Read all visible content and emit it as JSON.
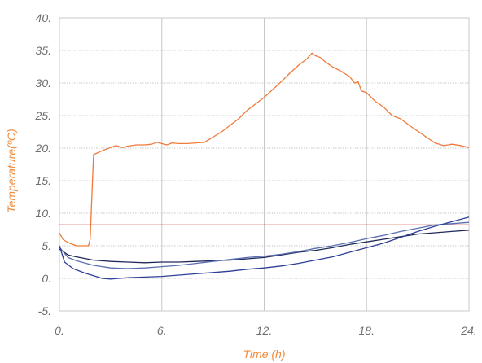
{
  "chart_data": {
    "type": "line",
    "title": "",
    "xlabel": "Time (h)",
    "ylabel": "Temperature(ºC)",
    "xlim": [
      0,
      24
    ],
    "ylim": [
      -5,
      40
    ],
    "x_ticks": [
      0,
      6,
      12,
      18,
      24
    ],
    "x_tick_labels": [
      "0.",
      "6.",
      "12.",
      "18.",
      "24."
    ],
    "y_ticks": [
      -5,
      0,
      5,
      10,
      15,
      20,
      25,
      30,
      35,
      40
    ],
    "y_tick_labels": [
      "-5.",
      "0.",
      "5.",
      "10.",
      "15.",
      "20.",
      "25.",
      "30.",
      "35.",
      "40."
    ],
    "grid": {
      "horizontal": true,
      "vertical": true
    },
    "legend": "none",
    "colors": {
      "axis_title": "#f08a3c",
      "tick_label": "#6f6f6f",
      "grid_major": "#c8c8c8",
      "grid_minor": "#b8b8b8",
      "border": "#c8c8c8"
    },
    "series": [
      {
        "color": "#f07a3a",
        "points": [
          [
            0,
            7.0
          ],
          [
            0.2,
            6.0
          ],
          [
            0.5,
            5.5
          ],
          [
            1.0,
            5.0
          ],
          [
            1.5,
            5.0
          ],
          [
            1.7,
            5.0
          ],
          [
            1.8,
            6.0
          ],
          [
            2.0,
            19.0
          ],
          [
            2.5,
            19.6
          ],
          [
            3.0,
            20.1
          ],
          [
            3.3,
            20.4
          ],
          [
            3.7,
            20.1
          ],
          [
            4.0,
            20.3
          ],
          [
            4.5,
            20.5
          ],
          [
            5.0,
            20.5
          ],
          [
            5.4,
            20.6
          ],
          [
            5.7,
            20.9
          ],
          [
            6.0,
            20.7
          ],
          [
            6.3,
            20.5
          ],
          [
            6.6,
            20.8
          ],
          [
            7.0,
            20.7
          ],
          [
            7.5,
            20.7
          ],
          [
            8.0,
            20.8
          ],
          [
            8.5,
            20.9
          ],
          [
            9.0,
            21.7
          ],
          [
            9.5,
            22.5
          ],
          [
            10.0,
            23.5
          ],
          [
            10.5,
            24.5
          ],
          [
            11.0,
            25.8
          ],
          [
            11.5,
            26.8
          ],
          [
            12.0,
            27.8
          ],
          [
            12.5,
            29.0
          ],
          [
            13.0,
            30.2
          ],
          [
            13.5,
            31.5
          ],
          [
            14.0,
            32.7
          ],
          [
            14.5,
            33.7
          ],
          [
            14.8,
            34.6
          ],
          [
            15.0,
            34.2
          ],
          [
            15.3,
            33.9
          ],
          [
            15.6,
            33.2
          ],
          [
            16.0,
            32.5
          ],
          [
            16.5,
            31.8
          ],
          [
            17.0,
            31.0
          ],
          [
            17.3,
            30.0
          ],
          [
            17.5,
            30.2
          ],
          [
            17.7,
            28.8
          ],
          [
            18.0,
            28.5
          ],
          [
            18.5,
            27.2
          ],
          [
            19.0,
            26.3
          ],
          [
            19.5,
            25.0
          ],
          [
            20.0,
            24.5
          ],
          [
            20.5,
            23.5
          ],
          [
            21.0,
            22.6
          ],
          [
            21.5,
            21.7
          ],
          [
            22.0,
            20.8
          ],
          [
            22.5,
            20.4
          ],
          [
            22.8,
            20.5
          ],
          [
            23.0,
            20.6
          ],
          [
            23.5,
            20.4
          ],
          [
            24.0,
            20.1
          ]
        ]
      },
      {
        "color": "#d0342c",
        "points": [
          [
            0,
            8.2
          ],
          [
            24,
            8.2
          ]
        ]
      },
      {
        "color": "#1f2a5a",
        "points": [
          [
            0,
            4.5
          ],
          [
            0.5,
            3.6
          ],
          [
            1.0,
            3.3
          ],
          [
            2.0,
            2.8
          ],
          [
            3.0,
            2.6
          ],
          [
            4.0,
            2.5
          ],
          [
            5.0,
            2.4
          ],
          [
            6.0,
            2.5
          ],
          [
            7.0,
            2.5
          ],
          [
            8.0,
            2.6
          ],
          [
            9.0,
            2.7
          ],
          [
            10.0,
            2.8
          ],
          [
            11.0,
            3.0
          ],
          [
            12.0,
            3.2
          ],
          [
            13.0,
            3.6
          ],
          [
            14.0,
            4.0
          ],
          [
            15.0,
            4.3
          ],
          [
            16.0,
            4.7
          ],
          [
            17.0,
            5.2
          ],
          [
            18.0,
            5.6
          ],
          [
            19.0,
            6.0
          ],
          [
            20.0,
            6.4
          ],
          [
            21.0,
            6.8
          ],
          [
            22.0,
            7.0
          ],
          [
            23.0,
            7.2
          ],
          [
            24.0,
            7.4
          ]
        ]
      },
      {
        "color": "#5a6fae",
        "points": [
          [
            0,
            4.8
          ],
          [
            0.5,
            3.2
          ],
          [
            1.0,
            2.7
          ],
          [
            2.0,
            2.0
          ],
          [
            3.0,
            1.6
          ],
          [
            4.0,
            1.5
          ],
          [
            5.0,
            1.6
          ],
          [
            6.0,
            1.8
          ],
          [
            7.0,
            2.0
          ],
          [
            8.0,
            2.3
          ],
          [
            9.0,
            2.6
          ],
          [
            10.0,
            2.9
          ],
          [
            11.0,
            3.2
          ],
          [
            12.0,
            3.4
          ],
          [
            13.0,
            3.7
          ],
          [
            14.0,
            4.1
          ],
          [
            15.0,
            4.6
          ],
          [
            16.0,
            5.0
          ],
          [
            17.0,
            5.5
          ],
          [
            18.0,
            6.1
          ],
          [
            19.0,
            6.6
          ],
          [
            20.0,
            7.2
          ],
          [
            21.0,
            7.7
          ],
          [
            22.0,
            8.2
          ],
          [
            23.0,
            8.4
          ],
          [
            24.0,
            8.6
          ]
        ]
      },
      {
        "color": "#2e3f96",
        "points": [
          [
            0,
            5.0
          ],
          [
            0.3,
            2.5
          ],
          [
            0.8,
            1.5
          ],
          [
            1.5,
            0.8
          ],
          [
            2.0,
            0.4
          ],
          [
            2.5,
            0.0
          ],
          [
            3.0,
            -0.1
          ],
          [
            3.5,
            0.0
          ],
          [
            4.0,
            0.1
          ],
          [
            5.0,
            0.2
          ],
          [
            6.0,
            0.3
          ],
          [
            7.0,
            0.5
          ],
          [
            8.0,
            0.7
          ],
          [
            9.0,
            0.9
          ],
          [
            10.0,
            1.1
          ],
          [
            11.0,
            1.4
          ],
          [
            12.0,
            1.6
          ],
          [
            13.0,
            1.9
          ],
          [
            14.0,
            2.3
          ],
          [
            15.0,
            2.8
          ],
          [
            16.0,
            3.3
          ],
          [
            17.0,
            4.0
          ],
          [
            18.0,
            4.7
          ],
          [
            19.0,
            5.4
          ],
          [
            20.0,
            6.3
          ],
          [
            21.0,
            7.2
          ],
          [
            22.0,
            8.0
          ],
          [
            23.0,
            8.7
          ],
          [
            24.0,
            9.4
          ]
        ]
      }
    ]
  }
}
